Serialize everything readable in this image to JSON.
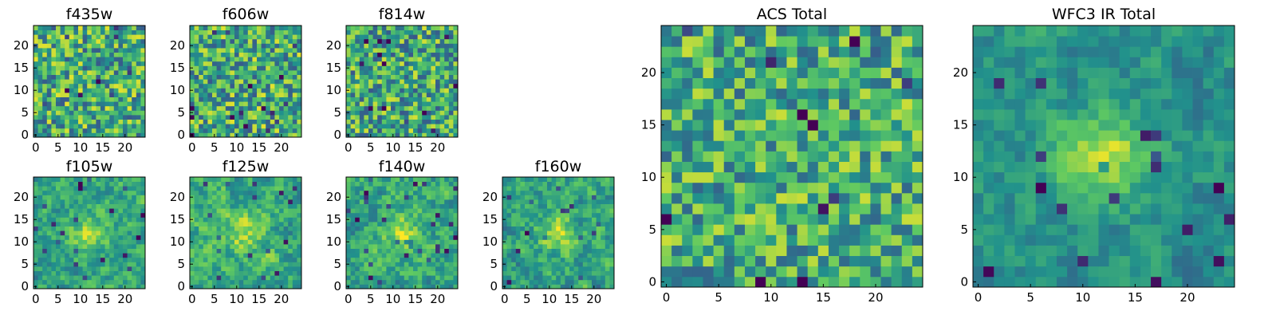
{
  "figure": {
    "colormap": "viridis",
    "colormap_stops": [
      "#440154",
      "#3b528b",
      "#21918c",
      "#5ec962",
      "#fde725"
    ]
  },
  "chart_data": [
    {
      "type": "heatmap",
      "title": "f435w",
      "grid_size": [
        25,
        25
      ],
      "xlim": [
        -0.5,
        24.5
      ],
      "ylim": [
        -0.5,
        24.5
      ],
      "xticks": [
        0,
        5,
        10,
        15,
        20
      ],
      "yticks": [
        0,
        5,
        10,
        15,
        20
      ],
      "xtick_labels": [
        "0",
        "5",
        "10",
        "15",
        "20"
      ],
      "ytick_labels": [
        "0",
        "5",
        "10",
        "15",
        "20"
      ],
      "origin": "lower",
      "texture": "white-noise",
      "center_peak": 0.0,
      "noise_level": 0.34,
      "mean_level": 0.62,
      "seed": 11
    },
    {
      "type": "heatmap",
      "title": "f606w",
      "grid_size": [
        25,
        25
      ],
      "xlim": [
        -0.5,
        24.5
      ],
      "ylim": [
        -0.5,
        24.5
      ],
      "xticks": [
        0,
        5,
        10,
        15,
        20
      ],
      "yticks": [
        0,
        5,
        10,
        15,
        20
      ],
      "xtick_labels": [
        "0",
        "5",
        "10",
        "15",
        "20"
      ],
      "ytick_labels": [
        "0",
        "5",
        "10",
        "15",
        "20"
      ],
      "origin": "lower",
      "texture": "white-noise",
      "center_peak": 0.0,
      "noise_level": 0.34,
      "mean_level": 0.62,
      "seed": 23
    },
    {
      "type": "heatmap",
      "title": "f814w",
      "grid_size": [
        25,
        25
      ],
      "xlim": [
        -0.5,
        24.5
      ],
      "ylim": [
        -0.5,
        24.5
      ],
      "xticks": [
        0,
        5,
        10,
        15,
        20
      ],
      "yticks": [
        0,
        5,
        10,
        15,
        20
      ],
      "xtick_labels": [
        "0",
        "5",
        "10",
        "15",
        "20"
      ],
      "ytick_labels": [
        "0",
        "5",
        "10",
        "15",
        "20"
      ],
      "origin": "lower",
      "texture": "white-noise",
      "center_peak": 0.0,
      "noise_level": 0.34,
      "mean_level": 0.6,
      "seed": 37
    },
    {
      "type": "heatmap",
      "title": "f105w",
      "grid_size": [
        25,
        25
      ],
      "xlim": [
        -0.5,
        24.5
      ],
      "ylim": [
        -0.5,
        24.5
      ],
      "xticks": [
        0,
        5,
        10,
        15,
        20
      ],
      "yticks": [
        0,
        5,
        10,
        15,
        20
      ],
      "xtick_labels": [
        "0",
        "5",
        "10",
        "15",
        "20"
      ],
      "ytick_labels": [
        "0",
        "5",
        "10",
        "15",
        "20"
      ],
      "origin": "lower",
      "texture": "smooth-noise",
      "center": [
        12,
        12
      ],
      "center_peak": 0.28,
      "noise_level": 0.3,
      "mean_level": 0.58,
      "seed": 41
    },
    {
      "type": "heatmap",
      "title": "f125w",
      "grid_size": [
        25,
        25
      ],
      "xlim": [
        -0.5,
        24.5
      ],
      "ylim": [
        -0.5,
        24.5
      ],
      "xticks": [
        0,
        5,
        10,
        15,
        20
      ],
      "yticks": [
        0,
        5,
        10,
        15,
        20
      ],
      "xtick_labels": [
        "0",
        "5",
        "10",
        "15",
        "20"
      ],
      "ytick_labels": [
        "0",
        "5",
        "10",
        "15",
        "20"
      ],
      "origin": "lower",
      "texture": "smooth-noise",
      "center": [
        12,
        12
      ],
      "center_peak": 0.22,
      "noise_level": 0.32,
      "mean_level": 0.62,
      "seed": 53
    },
    {
      "type": "heatmap",
      "title": "f140w",
      "grid_size": [
        25,
        25
      ],
      "xlim": [
        -0.5,
        24.5
      ],
      "ylim": [
        -0.5,
        24.5
      ],
      "xticks": [
        0,
        5,
        10,
        15,
        20
      ],
      "yticks": [
        0,
        5,
        10,
        15,
        20
      ],
      "xtick_labels": [
        "0",
        "5",
        "10",
        "15",
        "20"
      ],
      "ytick_labels": [
        "0",
        "5",
        "10",
        "15",
        "20"
      ],
      "origin": "lower",
      "texture": "smooth-noise",
      "center": [
        12,
        12
      ],
      "center_peak": 0.26,
      "noise_level": 0.32,
      "mean_level": 0.6,
      "seed": 67
    },
    {
      "type": "heatmap",
      "title": "f160w",
      "grid_size": [
        25,
        25
      ],
      "xlim": [
        -0.5,
        24.5
      ],
      "ylim": [
        -0.5,
        24.5
      ],
      "xticks": [
        0,
        5,
        10,
        15,
        20
      ],
      "yticks": [
        0,
        5,
        10,
        15,
        20
      ],
      "xtick_labels": [
        "0",
        "5",
        "10",
        "15",
        "20"
      ],
      "ytick_labels": [
        "0",
        "5",
        "10",
        "15",
        "20"
      ],
      "origin": "lower",
      "texture": "smooth-noise",
      "center": [
        12,
        12
      ],
      "center_peak": 0.3,
      "noise_level": 0.32,
      "mean_level": 0.58,
      "seed": 79
    },
    {
      "type": "heatmap",
      "title": "ACS Total",
      "grid_size": [
        25,
        25
      ],
      "xlim": [
        -0.5,
        24.5
      ],
      "ylim": [
        -0.5,
        24.5
      ],
      "xticks": [
        0,
        5,
        10,
        15,
        20
      ],
      "yticks": [
        0,
        5,
        10,
        15,
        20
      ],
      "xtick_labels": [
        "0",
        "5",
        "10",
        "15",
        "20"
      ],
      "ytick_labels": [
        "0",
        "5",
        "10",
        "15",
        "20"
      ],
      "origin": "lower",
      "texture": "white-noise",
      "center_peak": 0.0,
      "noise_level": 0.3,
      "mean_level": 0.62,
      "seed": 97
    },
    {
      "type": "heatmap",
      "title": "WFC3 IR Total",
      "grid_size": [
        25,
        25
      ],
      "xlim": [
        -0.5,
        24.5
      ],
      "ylim": [
        -0.5,
        24.5
      ],
      "xticks": [
        0,
        5,
        10,
        15,
        20
      ],
      "yticks": [
        0,
        5,
        10,
        15,
        20
      ],
      "xtick_labels": [
        "0",
        "5",
        "10",
        "15",
        "20"
      ],
      "ytick_labels": [
        "0",
        "5",
        "10",
        "15",
        "20"
      ],
      "origin": "lower",
      "texture": "smooth-noise",
      "center": [
        12,
        12
      ],
      "center_peak": 0.42,
      "noise_level": 0.22,
      "mean_level": 0.5,
      "seed": 131
    }
  ]
}
